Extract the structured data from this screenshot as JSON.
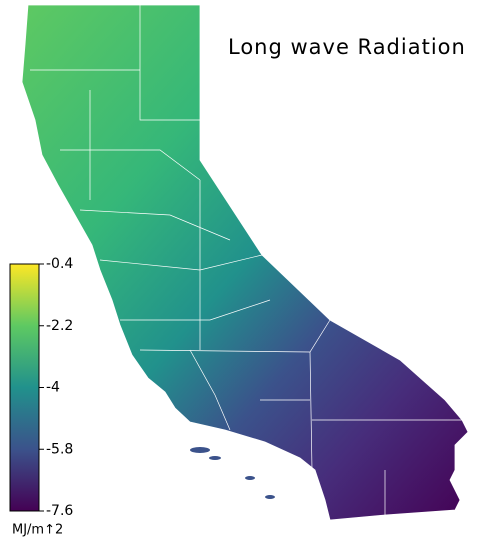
{
  "title": "Long wave Radiation",
  "colorbar": {
    "lim": [
      -7.6,
      -0.4
    ],
    "ticks": [
      -0.4,
      -2.2,
      -4.0,
      -5.8,
      -7.6
    ],
    "unit": "MJ/m↑2"
  }
}
